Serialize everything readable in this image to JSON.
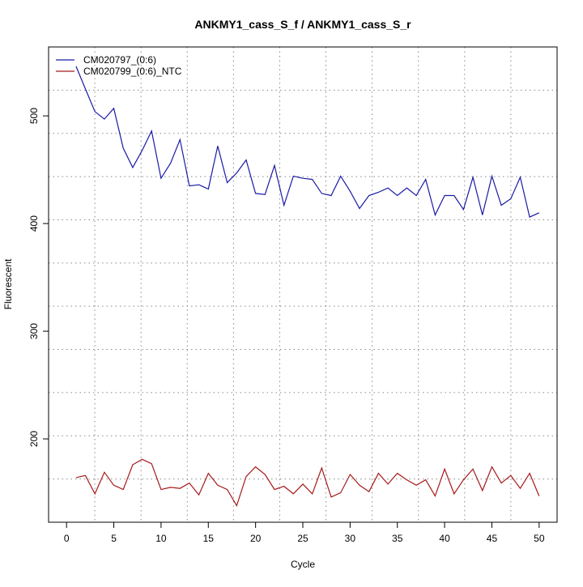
{
  "chart_data": {
    "type": "line",
    "title": "ANKMY1_cass_S_f / ANKMY1_cass_S_r",
    "xlabel": "Cycle",
    "ylabel": "Fluorescent",
    "xlim": [
      -1.9,
      51.9
    ],
    "ylim": [
      122.6,
      564
    ],
    "xticks": [
      0,
      5,
      10,
      15,
      20,
      25,
      30,
      35,
      40,
      45,
      50
    ],
    "yticks": [
      200,
      300,
      400,
      500
    ],
    "grid": true,
    "legend_position": "top-left",
    "x": [
      1,
      2,
      3,
      4,
      5,
      6,
      7,
      8,
      9,
      10,
      11,
      12,
      13,
      14,
      15,
      16,
      17,
      18,
      19,
      20,
      21,
      22,
      23,
      24,
      25,
      26,
      27,
      28,
      29,
      30,
      31,
      32,
      33,
      34,
      35,
      36,
      37,
      38,
      39,
      40,
      41,
      42,
      43,
      44,
      45,
      46,
      47,
      48,
      49,
      50
    ],
    "series": [
      {
        "name": "CM020797_(0:6)",
        "color": "#1a1aa6",
        "values": [
          546,
          525,
          504,
          497,
          507,
          470,
          452,
          468,
          486,
          442,
          456,
          478,
          435,
          436,
          432,
          472,
          438,
          447,
          459,
          428,
          427,
          454,
          417,
          444,
          442,
          441,
          428,
          426,
          444,
          430,
          414,
          426,
          429,
          433,
          426,
          433,
          426,
          441,
          408,
          426,
          426,
          413,
          443,
          408,
          444,
          417,
          423,
          443,
          406,
          410
        ]
      },
      {
        "name": "CM020799_(0:6)_NTC",
        "color": "#a61a1a",
        "values": [
          164,
          166,
          149,
          169,
          157,
          153,
          176,
          181,
          177,
          153,
          155,
          154,
          159,
          148,
          168,
          157,
          153,
          138,
          165,
          174,
          167,
          153,
          156,
          149,
          158,
          149,
          173,
          146,
          150,
          167,
          157,
          151,
          168,
          158,
          168,
          162,
          157,
          162,
          147,
          172,
          149,
          162,
          172,
          152,
          174,
          159,
          166,
          154,
          168,
          147
        ]
      }
    ]
  }
}
